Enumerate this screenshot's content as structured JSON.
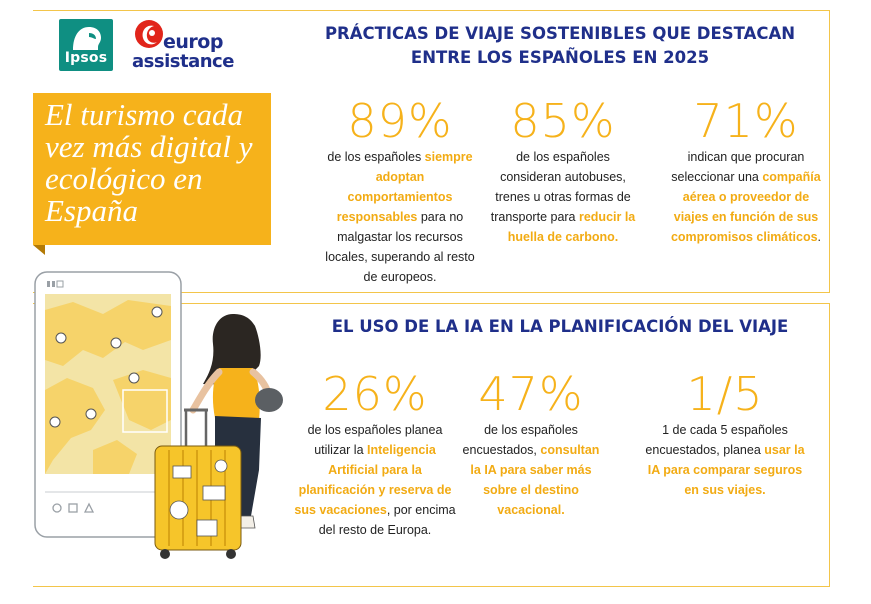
{
  "logos": {
    "ipsos": "Ipsos",
    "europ_line1": "europ",
    "europ_line2": "assistance"
  },
  "banner": {
    "title": "El turismo cada vez más digital y ecológico en España"
  },
  "section_sustainable": {
    "title": "PRÁCTICAS DE VIAJE SOSTENIBLES QUE DESTACAN ENTRE LOS ESPAÑOLES EN 2025",
    "stats": [
      {
        "value": "89%",
        "text_before": "de los españoles ",
        "highlight": "siempre adoptan comportamientos responsables",
        "text_after": " para no malgastar los recursos locales, superando al resto de europeos."
      },
      {
        "value": "85%",
        "text_before": "de los españoles consideran autobuses, trenes u otras formas de transporte para ",
        "highlight": "reducir la huella de carbono.",
        "text_after": ""
      },
      {
        "value": "71%",
        "text_before": "indican que procuran seleccionar una ",
        "highlight": "compañía aérea o proveedor de viajes en función de sus compromisos climáticos",
        "text_after": "."
      }
    ]
  },
  "section_ai": {
    "title": "EL USO DE LA IA EN LA PLANIFICACIÓN DEL VIAJE",
    "stats": [
      {
        "value": "26%",
        "text_before": "de los españoles planea utilizar la ",
        "highlight": "Inteligencia Artificial para la planificación y reserva de sus vacaciones",
        "text_after": ", por encima del resto de Europa."
      },
      {
        "value": "47%",
        "text_before": "de los españoles encuestados, ",
        "highlight": "consultan la IA para saber más sobre el destino vacacional.",
        "text_after": ""
      },
      {
        "value": "1/5",
        "text_before": "1 de cada 5 españoles encuestados, planea ",
        "highlight": "usar la IA para comparar seguros en sus viajes.",
        "text_after": ""
      }
    ]
  },
  "colors": {
    "accent_yellow": "#f6b21b",
    "title_blue": "#1f2f8a",
    "ipsos_teal": "#0f8f82",
    "europ_red": "#e1251b"
  },
  "icons": [
    "map-pin-icon",
    "suitcase-icon",
    "phone-frame-icon",
    "traveler-illustration"
  ]
}
